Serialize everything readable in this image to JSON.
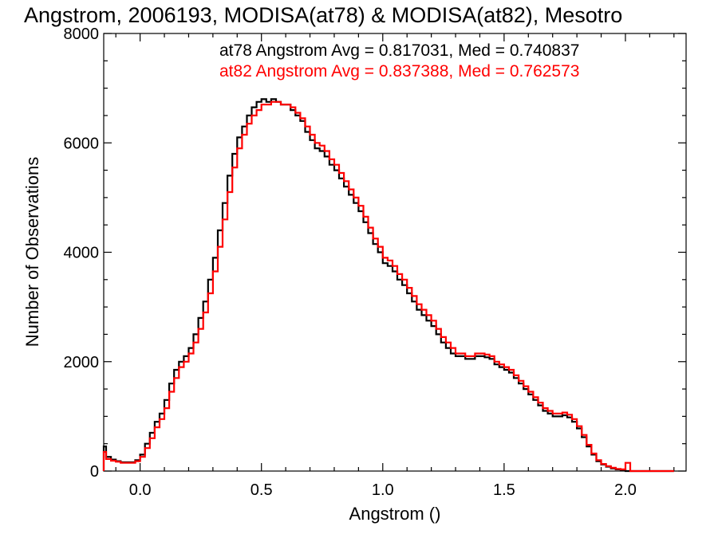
{
  "chart_data": {
    "type": "line",
    "title": "Angstrom, 2006193, MODISA(at78) & MODISA(at82), Mesotro",
    "xlabel": "Angstrom ()",
    "ylabel": "Number of Observations",
    "xlim": [
      -0.15,
      2.25
    ],
    "ylim": [
      0,
      8000
    ],
    "x_ticks": [
      0.0,
      0.5,
      1.0,
      1.5,
      2.0
    ],
    "x_tick_labels": [
      "0.0",
      "0.5",
      "1.0",
      "1.5",
      "2.0"
    ],
    "y_ticks": [
      0,
      2000,
      4000,
      6000,
      8000
    ],
    "y_tick_labels": [
      "0",
      "2000",
      "4000",
      "6000",
      "8000"
    ],
    "grid": false,
    "legend_position": "top-right",
    "annotations": [
      "at78 Angstrom Avg = 0.817031, Med = 0.740837",
      "at82 Angstrom Avg = 0.837388, Med = 0.762573"
    ],
    "series": [
      {
        "name": "at78",
        "color": "#000000",
        "x": [
          -0.15,
          -0.14,
          -0.12,
          -0.1,
          -0.08,
          -0.05,
          -0.02,
          0.0,
          0.02,
          0.04,
          0.06,
          0.08,
          0.1,
          0.12,
          0.14,
          0.16,
          0.18,
          0.2,
          0.22,
          0.24,
          0.26,
          0.28,
          0.3,
          0.32,
          0.34,
          0.36,
          0.38,
          0.4,
          0.42,
          0.44,
          0.46,
          0.48,
          0.5,
          0.52,
          0.54,
          0.56,
          0.58,
          0.6,
          0.62,
          0.64,
          0.66,
          0.68,
          0.7,
          0.72,
          0.74,
          0.76,
          0.78,
          0.8,
          0.82,
          0.84,
          0.86,
          0.88,
          0.9,
          0.92,
          0.94,
          0.96,
          0.98,
          1.0,
          1.02,
          1.04,
          1.06,
          1.08,
          1.1,
          1.12,
          1.14,
          1.16,
          1.18,
          1.2,
          1.22,
          1.24,
          1.26,
          1.28,
          1.3,
          1.32,
          1.34,
          1.36,
          1.38,
          1.4,
          1.42,
          1.44,
          1.46,
          1.48,
          1.5,
          1.52,
          1.54,
          1.56,
          1.58,
          1.6,
          1.62,
          1.64,
          1.66,
          1.68,
          1.7,
          1.72,
          1.74,
          1.76,
          1.78,
          1.8,
          1.82,
          1.84,
          1.86,
          1.88,
          1.9,
          1.92,
          1.94,
          1.96,
          1.98,
          2.0,
          2.02,
          2.04,
          2.06,
          2.08,
          2.1,
          2.12,
          2.14,
          2.16,
          2.2
        ],
        "y": [
          450,
          260,
          210,
          180,
          160,
          160,
          200,
          300,
          500,
          700,
          900,
          1050,
          1300,
          1600,
          1850,
          2000,
          2100,
          2250,
          2500,
          2800,
          3100,
          3500,
          3900,
          4400,
          4900,
          5400,
          5800,
          6100,
          6300,
          6500,
          6650,
          6750,
          6800,
          6750,
          6800,
          6750,
          6700,
          6700,
          6600,
          6500,
          6400,
          6200,
          6050,
          5900,
          5850,
          5750,
          5600,
          5500,
          5350,
          5200,
          5050,
          4900,
          4750,
          4550,
          4350,
          4150,
          4000,
          3800,
          3750,
          3650,
          3500,
          3400,
          3250,
          3100,
          2950,
          2850,
          2750,
          2650,
          2500,
          2350,
          2250,
          2150,
          2100,
          2100,
          2050,
          2050,
          2100,
          2100,
          2080,
          2050,
          1950,
          1900,
          1850,
          1800,
          1700,
          1600,
          1500,
          1400,
          1300,
          1200,
          1100,
          1050,
          1000,
          1000,
          1020,
          980,
          900,
          780,
          620,
          450,
          300,
          180,
          120,
          80,
          50,
          30,
          20,
          0,
          0,
          0,
          0,
          0,
          0,
          0,
          0,
          0,
          0
        ]
      },
      {
        "name": "at82",
        "color": "#ff0000",
        "x": [
          -0.15,
          -0.14,
          -0.12,
          -0.1,
          -0.08,
          -0.05,
          -0.02,
          0.0,
          0.02,
          0.04,
          0.06,
          0.08,
          0.1,
          0.12,
          0.14,
          0.16,
          0.18,
          0.2,
          0.22,
          0.24,
          0.26,
          0.28,
          0.3,
          0.32,
          0.34,
          0.36,
          0.38,
          0.4,
          0.42,
          0.44,
          0.46,
          0.48,
          0.5,
          0.52,
          0.54,
          0.56,
          0.58,
          0.6,
          0.62,
          0.64,
          0.66,
          0.68,
          0.7,
          0.72,
          0.74,
          0.76,
          0.78,
          0.8,
          0.82,
          0.84,
          0.86,
          0.88,
          0.9,
          0.92,
          0.94,
          0.96,
          0.98,
          1.0,
          1.02,
          1.04,
          1.06,
          1.08,
          1.1,
          1.12,
          1.14,
          1.16,
          1.18,
          1.2,
          1.22,
          1.24,
          1.26,
          1.28,
          1.3,
          1.32,
          1.34,
          1.36,
          1.38,
          1.4,
          1.42,
          1.44,
          1.46,
          1.48,
          1.5,
          1.52,
          1.54,
          1.56,
          1.58,
          1.6,
          1.62,
          1.64,
          1.66,
          1.68,
          1.7,
          1.72,
          1.74,
          1.76,
          1.78,
          1.8,
          1.82,
          1.84,
          1.86,
          1.88,
          1.9,
          1.92,
          1.94,
          1.96,
          1.98,
          2.0,
          2.02,
          2.04,
          2.06,
          2.08,
          2.1,
          2.12,
          2.14,
          2.16,
          2.2
        ],
        "y": [
          350,
          220,
          190,
          170,
          150,
          150,
          180,
          260,
          420,
          600,
          800,
          950,
          1150,
          1450,
          1700,
          1900,
          2000,
          2150,
          2350,
          2600,
          2900,
          3250,
          3650,
          4100,
          4600,
          5100,
          5550,
          5900,
          6150,
          6350,
          6500,
          6600,
          6700,
          6700,
          6750,
          6750,
          6700,
          6700,
          6650,
          6550,
          6450,
          6300,
          6150,
          6000,
          5950,
          5850,
          5700,
          5600,
          5450,
          5300,
          5150,
          5000,
          4850,
          4650,
          4450,
          4250,
          4100,
          3900,
          3850,
          3750,
          3600,
          3500,
          3350,
          3200,
          3050,
          2950,
          2850,
          2750,
          2600,
          2450,
          2350,
          2250,
          2150,
          2150,
          2100,
          2100,
          2150,
          2150,
          2130,
          2100,
          2000,
          1950,
          1900,
          1850,
          1750,
          1650,
          1550,
          1450,
          1350,
          1250,
          1150,
          1100,
          1050,
          1050,
          1070,
          1030,
          950,
          820,
          660,
          480,
          320,
          200,
          130,
          90,
          60,
          40,
          30,
          150,
          0,
          0,
          0,
          0,
          0,
          0,
          0,
          0,
          0
        ]
      }
    ]
  }
}
